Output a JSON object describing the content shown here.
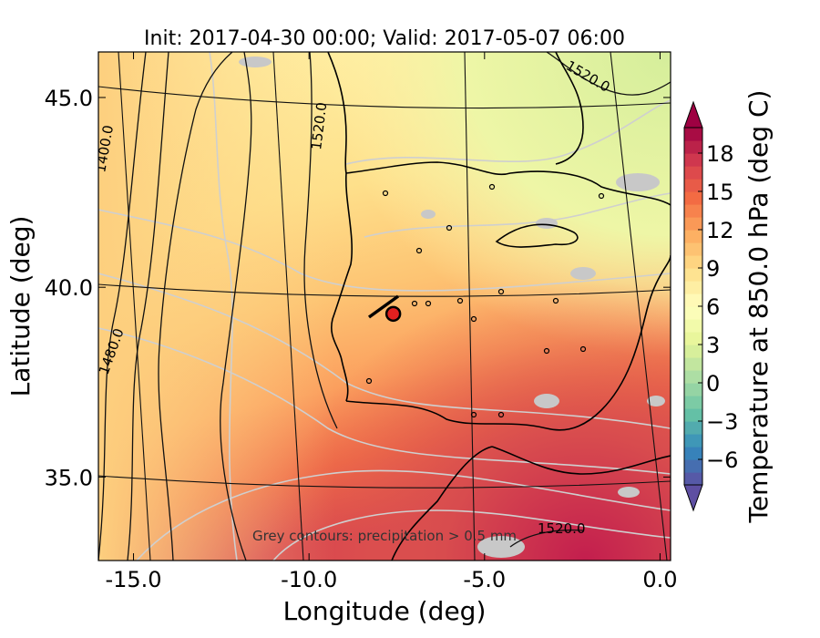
{
  "chart_data": {
    "type": "heatmap",
    "title": "Init: 2017-04-30 00:00; Valid: 2017-05-07 06:00",
    "xlabel": "Longitude (deg)",
    "ylabel": "Latitude (deg)",
    "xlim": [
      -16.0,
      0.3
    ],
    "ylim": [
      32.8,
      46.2
    ],
    "x_ticks": [
      "-15.0",
      "-10.0",
      "-5.0",
      "0.0"
    ],
    "x_tick_values": [
      -15.0,
      -10.0,
      -5.0,
      0.0
    ],
    "y_ticks": [
      "35.0",
      "40.0",
      "45.0"
    ],
    "y_tick_values": [
      35.0,
      40.0,
      45.0
    ],
    "colorbar": {
      "label": "Temperature at 850.0 hPa (deg C)",
      "ticks": [
        "−6",
        "−3",
        "0",
        "3",
        "6",
        "9",
        "12",
        "15",
        "18"
      ],
      "tick_values": [
        -6,
        -3,
        0,
        3,
        6,
        9,
        12,
        15,
        18
      ],
      "range": [
        -8,
        20
      ],
      "extend": "both",
      "colormap": "Spectral_r"
    },
    "contour_labels": [
      "1520.0",
      "1520.0",
      "1480.0",
      "1400.0",
      "1520.0"
    ],
    "marker": {
      "lon": -7.6,
      "lat": 39.3,
      "color": "#e02020"
    },
    "annotation": "Grey contours: precipitation > 0.5 mm",
    "colors": {
      "warm_south": "#d53e4f",
      "mid": "#fdae61",
      "cool_north": "#e6f598",
      "precip": "#c8c8c8",
      "coastline": "#000000"
    }
  }
}
